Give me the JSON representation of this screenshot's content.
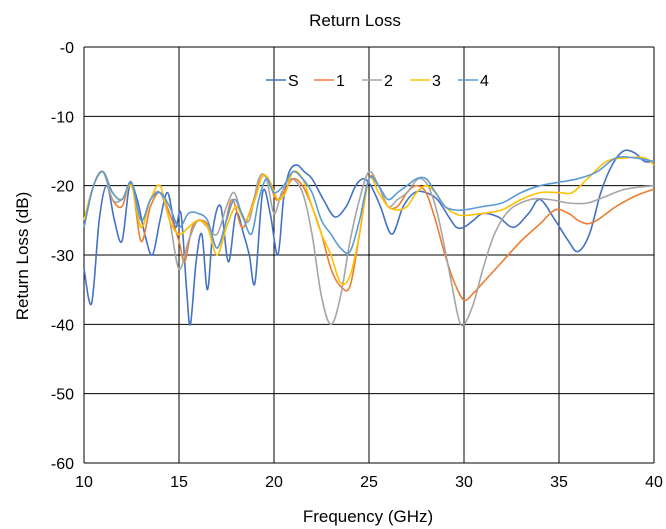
{
  "chart_data": {
    "type": "line",
    "title": "Return Loss",
    "xlabel": "Frequency (GHz)",
    "ylabel": "Return Loss (dB)",
    "xlim": [
      10,
      40
    ],
    "ylim": [
      -60,
      0
    ],
    "xticks": [
      10,
      15,
      20,
      25,
      30,
      35,
      40
    ],
    "yticks": [
      0,
      -10,
      -20,
      -30,
      -40,
      -50,
      -60
    ],
    "xtick_labels": [
      "10",
      "15",
      "20",
      "25",
      "30",
      "35",
      "40"
    ],
    "ytick_labels": [
      "-0",
      "-10",
      "-20",
      "-30",
      "-40",
      "-50",
      "-60"
    ],
    "grid": true,
    "legend_position": "top-center",
    "series": [
      {
        "name": "S",
        "color": "#4472c4",
        "points": [
          [
            10,
            -32
          ],
          [
            10.4,
            -37
          ],
          [
            10.8,
            -25
          ],
          [
            11.2,
            -20
          ],
          [
            11.6,
            -25
          ],
          [
            12,
            -28
          ],
          [
            12.4,
            -20
          ],
          [
            12.8,
            -22
          ],
          [
            13.2,
            -27
          ],
          [
            13.6,
            -30
          ],
          [
            14,
            -25
          ],
          [
            14.4,
            -21
          ],
          [
            14.8,
            -26
          ],
          [
            15.1,
            -24
          ],
          [
            15.4,
            -35
          ],
          [
            15.6,
            -40
          ],
          [
            15.9,
            -31
          ],
          [
            16.2,
            -27
          ],
          [
            16.5,
            -35
          ],
          [
            16.8,
            -26
          ],
          [
            17.2,
            -23
          ],
          [
            17.6,
            -31
          ],
          [
            18,
            -24
          ],
          [
            18.4,
            -27
          ],
          [
            18.7,
            -30
          ],
          [
            19,
            -34
          ],
          [
            19.4,
            -21
          ],
          [
            19.8,
            -24
          ],
          [
            20.2,
            -30
          ],
          [
            20.5,
            -22
          ],
          [
            20.8,
            -18
          ],
          [
            21.2,
            -17
          ],
          [
            21.6,
            -18
          ],
          [
            22,
            -19
          ],
          [
            22.6,
            -22
          ],
          [
            23.2,
            -24.5
          ],
          [
            23.8,
            -23
          ],
          [
            24.3,
            -20
          ],
          [
            24.7,
            -19
          ],
          [
            25.1,
            -20
          ],
          [
            25.6,
            -23
          ],
          [
            26.2,
            -27
          ],
          [
            26.8,
            -23
          ],
          [
            27.4,
            -21
          ],
          [
            28,
            -21
          ],
          [
            28.6,
            -22
          ],
          [
            29.2,
            -24.5
          ],
          [
            29.6,
            -26
          ],
          [
            30,
            -26
          ],
          [
            30.5,
            -25
          ],
          [
            31,
            -24
          ],
          [
            31.8,
            -24.5
          ],
          [
            32.6,
            -26
          ],
          [
            33.4,
            -24
          ],
          [
            34,
            -22
          ],
          [
            34.8,
            -25
          ],
          [
            35.5,
            -28
          ],
          [
            36,
            -29.5
          ],
          [
            36.6,
            -27
          ],
          [
            37.2,
            -21
          ],
          [
            37.8,
            -17
          ],
          [
            38.4,
            -15
          ],
          [
            39,
            -15.3
          ],
          [
            39.5,
            -16.5
          ],
          [
            40,
            -16.5
          ]
        ]
      },
      {
        "name": "1",
        "color": "#ed7d31",
        "points": [
          [
            10,
            -26
          ],
          [
            10.5,
            -20
          ],
          [
            11,
            -18
          ],
          [
            11.5,
            -22
          ],
          [
            12,
            -23
          ],
          [
            12.5,
            -19.5
          ],
          [
            13,
            -28
          ],
          [
            13.5,
            -23
          ],
          [
            14,
            -21
          ],
          [
            14.5,
            -24
          ],
          [
            15,
            -28
          ],
          [
            15.3,
            -31
          ],
          [
            15.7,
            -26
          ],
          [
            16.2,
            -25
          ],
          [
            16.6,
            -26
          ],
          [
            17,
            -29
          ],
          [
            17.4,
            -26
          ],
          [
            17.8,
            -22
          ],
          [
            18.3,
            -26
          ],
          [
            18.7,
            -24
          ],
          [
            19.3,
            -19
          ],
          [
            19.7,
            -19
          ],
          [
            20.1,
            -22
          ],
          [
            20.5,
            -21
          ],
          [
            21,
            -19
          ],
          [
            21.5,
            -20
          ],
          [
            22,
            -23
          ],
          [
            22.5,
            -27
          ],
          [
            23,
            -32
          ],
          [
            23.5,
            -34.5
          ],
          [
            24,
            -34.5
          ],
          [
            24.5,
            -27
          ],
          [
            25,
            -19
          ],
          [
            25.5,
            -20
          ],
          [
            26,
            -23
          ],
          [
            26.5,
            -23
          ],
          [
            27,
            -21
          ],
          [
            27.5,
            -20
          ],
          [
            28,
            -21
          ],
          [
            28.5,
            -25
          ],
          [
            29,
            -30
          ],
          [
            29.5,
            -34
          ],
          [
            30,
            -36.5
          ],
          [
            30.5,
            -35.5
          ],
          [
            31,
            -34
          ],
          [
            32,
            -31
          ],
          [
            33,
            -28
          ],
          [
            34,
            -25.5
          ],
          [
            34.8,
            -23.5
          ],
          [
            35.5,
            -24
          ],
          [
            36,
            -25
          ],
          [
            36.5,
            -25.5
          ],
          [
            37,
            -25
          ],
          [
            37.5,
            -24
          ],
          [
            38,
            -23
          ],
          [
            39,
            -21.5
          ],
          [
            40,
            -20.5
          ]
        ]
      },
      {
        "name": "2",
        "color": "#a5a5a5",
        "points": [
          [
            10,
            -25
          ],
          [
            10.5,
            -20
          ],
          [
            11,
            -18
          ],
          [
            11.5,
            -22
          ],
          [
            12,
            -22
          ],
          [
            12.5,
            -20
          ],
          [
            13,
            -26
          ],
          [
            13.5,
            -22
          ],
          [
            14,
            -21
          ],
          [
            14.5,
            -25
          ],
          [
            15,
            -32
          ],
          [
            15.5,
            -28
          ],
          [
            16,
            -25
          ],
          [
            16.5,
            -26
          ],
          [
            17,
            -27
          ],
          [
            17.5,
            -23
          ],
          [
            17.9,
            -21
          ],
          [
            18.3,
            -24
          ],
          [
            18.7,
            -25
          ],
          [
            19.2,
            -19
          ],
          [
            19.6,
            -19
          ],
          [
            20,
            -24
          ],
          [
            20.4,
            -21
          ],
          [
            20.9,
            -19
          ],
          [
            21.5,
            -21
          ],
          [
            22,
            -27
          ],
          [
            22.5,
            -36
          ],
          [
            23,
            -40
          ],
          [
            23.5,
            -36
          ],
          [
            24,
            -28
          ],
          [
            24.5,
            -22
          ],
          [
            25,
            -18
          ],
          [
            25.5,
            -20
          ],
          [
            26,
            -23
          ],
          [
            26.5,
            -22
          ],
          [
            27,
            -21
          ],
          [
            27.6,
            -19
          ],
          [
            28.1,
            -20
          ],
          [
            28.6,
            -24
          ],
          [
            29.2,
            -32
          ],
          [
            29.7,
            -39
          ],
          [
            30,
            -40
          ],
          [
            30.5,
            -37
          ],
          [
            31,
            -32
          ],
          [
            31.6,
            -27
          ],
          [
            32.4,
            -23.5
          ],
          [
            33.5,
            -22
          ],
          [
            34.5,
            -22
          ],
          [
            35.5,
            -22.5
          ],
          [
            36.5,
            -22.5
          ],
          [
            37.5,
            -21.5
          ],
          [
            38.5,
            -20.5
          ],
          [
            40,
            -20
          ]
        ]
      },
      {
        "name": "3",
        "color": "#ffc000",
        "points": [
          [
            10,
            -25
          ],
          [
            10.5,
            -20
          ],
          [
            11,
            -18
          ],
          [
            11.5,
            -21
          ],
          [
            12,
            -22
          ],
          [
            12.5,
            -20
          ],
          [
            13,
            -26
          ],
          [
            13.5,
            -22
          ],
          [
            14,
            -20
          ],
          [
            14.5,
            -25
          ],
          [
            15,
            -27
          ],
          [
            15.5,
            -26
          ],
          [
            16,
            -25
          ],
          [
            16.5,
            -26
          ],
          [
            17,
            -30
          ],
          [
            17.5,
            -26
          ],
          [
            18,
            -23
          ],
          [
            18.5,
            -25
          ],
          [
            19,
            -22
          ],
          [
            19.4,
            -18.5
          ],
          [
            19.8,
            -19.5
          ],
          [
            20.2,
            -22
          ],
          [
            20.6,
            -21
          ],
          [
            21,
            -18
          ],
          [
            21.5,
            -19
          ],
          [
            22,
            -23
          ],
          [
            22.5,
            -27
          ],
          [
            23,
            -30
          ],
          [
            23.5,
            -34
          ],
          [
            24,
            -33
          ],
          [
            24.5,
            -27
          ],
          [
            25,
            -19
          ],
          [
            25.5,
            -21
          ],
          [
            26,
            -23
          ],
          [
            26.5,
            -23.5
          ],
          [
            27,
            -23
          ],
          [
            27.5,
            -21
          ],
          [
            28,
            -20
          ],
          [
            28.5,
            -21
          ],
          [
            29,
            -23
          ],
          [
            29.5,
            -24
          ],
          [
            30,
            -24.3
          ],
          [
            31,
            -24
          ],
          [
            32,
            -23.5
          ],
          [
            33,
            -22
          ],
          [
            34,
            -21
          ],
          [
            35,
            -21
          ],
          [
            35.7,
            -21
          ],
          [
            36.5,
            -19
          ],
          [
            37.5,
            -16.5
          ],
          [
            38.5,
            -16
          ],
          [
            39.5,
            -16
          ],
          [
            40,
            -17
          ]
        ]
      },
      {
        "name": "4",
        "color": "#5b9bd5",
        "points": [
          [
            10,
            -26
          ],
          [
            10.5,
            -20
          ],
          [
            11,
            -18
          ],
          [
            11.5,
            -21
          ],
          [
            12,
            -22
          ],
          [
            12.5,
            -19.5
          ],
          [
            13,
            -25
          ],
          [
            13.5,
            -22
          ],
          [
            14,
            -21
          ],
          [
            14.5,
            -23
          ],
          [
            15,
            -26
          ],
          [
            15.5,
            -24
          ],
          [
            16,
            -24
          ],
          [
            16.5,
            -25
          ],
          [
            17,
            -29
          ],
          [
            17.5,
            -25
          ],
          [
            17.9,
            -22
          ],
          [
            18.3,
            -24
          ],
          [
            18.8,
            -27
          ],
          [
            19.2,
            -22
          ],
          [
            19.6,
            -19
          ],
          [
            20,
            -21
          ],
          [
            20.5,
            -20
          ],
          [
            21,
            -18
          ],
          [
            21.5,
            -19
          ],
          [
            22,
            -21
          ],
          [
            22.5,
            -25
          ],
          [
            23,
            -27
          ],
          [
            23.5,
            -29
          ],
          [
            24,
            -29.5
          ],
          [
            24.5,
            -25
          ],
          [
            25,
            -19
          ],
          [
            25.5,
            -20
          ],
          [
            26,
            -22
          ],
          [
            26.5,
            -21
          ],
          [
            27,
            -20
          ],
          [
            27.5,
            -19
          ],
          [
            28,
            -19
          ],
          [
            28.5,
            -21
          ],
          [
            29,
            -23
          ],
          [
            29.5,
            -23.5
          ],
          [
            30,
            -23.5
          ],
          [
            31,
            -23
          ],
          [
            32,
            -22.5
          ],
          [
            33,
            -21
          ],
          [
            34,
            -20
          ],
          [
            35,
            -19.5
          ],
          [
            36,
            -19
          ],
          [
            37,
            -18
          ],
          [
            38,
            -16
          ],
          [
            39,
            -16
          ],
          [
            40,
            -16.5
          ]
        ]
      }
    ]
  }
}
